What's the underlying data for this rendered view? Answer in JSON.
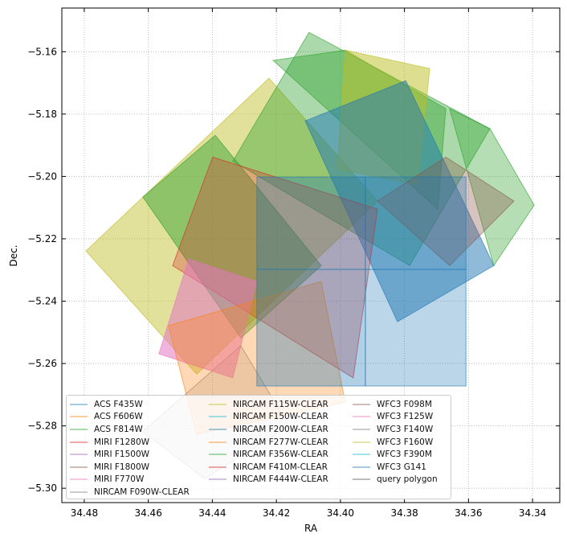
{
  "chart_data": {
    "type": "polygon",
    "title": "",
    "xlabel": "RA",
    "ylabel": "Dec.",
    "xlim": [
      34.487,
      34.3315
    ],
    "ylim": [
      -5.3046,
      -5.146
    ],
    "xticks": [
      34.48,
      34.46,
      34.44,
      34.42,
      34.4,
      34.38,
      34.36,
      34.34
    ],
    "xtick_labels": [
      "34.48",
      "34.46",
      "34.44",
      "34.42",
      "34.40",
      "34.38",
      "34.36",
      "34.34"
    ],
    "yticks": [
      -5.16,
      -5.18,
      -5.2,
      -5.22,
      -5.24,
      -5.26,
      -5.28,
      -5.3
    ],
    "ytick_labels": [
      "−5.16",
      "−5.18",
      "−5.20",
      "−5.22",
      "−5.24",
      "−5.26",
      "−5.28",
      "−5.30"
    ],
    "grid": true,
    "legend_placement": "lower-left",
    "legend": [
      {
        "label": "ACS F435W",
        "color": "#1f77b4"
      },
      {
        "label": "ACS F606W",
        "color": "#ff7f0e"
      },
      {
        "label": "ACS F814W",
        "color": "#2ca02c"
      },
      {
        "label": "MIRI F1280W",
        "color": "#d62728"
      },
      {
        "label": "MIRI F1500W",
        "color": "#9467bd"
      },
      {
        "label": "MIRI F1800W",
        "color": "#8c564b"
      },
      {
        "label": "MIRI F770W",
        "color": "#e377c2"
      },
      {
        "label": "NIRCAM F090W-CLEAR",
        "color": "#7f7f7f"
      },
      {
        "label": "NIRCAM F115W-CLEAR",
        "color": "#bcbd22"
      },
      {
        "label": "NIRCAM F150W-CLEAR",
        "color": "#17becf"
      },
      {
        "label": "NIRCAM F200W-CLEAR",
        "color": "#1f77b4"
      },
      {
        "label": "NIRCAM F277W-CLEAR",
        "color": "#ff7f0e"
      },
      {
        "label": "NIRCAM F356W-CLEAR",
        "color": "#2ca02c"
      },
      {
        "label": "NIRCAM F410M-CLEAR",
        "color": "#d62728"
      },
      {
        "label": "NIRCAM F444W-CLEAR",
        "color": "#9467bd"
      },
      {
        "label": "WFC3 F098M",
        "color": "#8c564b"
      },
      {
        "label": "WFC3 F125W",
        "color": "#e377c2"
      },
      {
        "label": "WFC3 F140W",
        "color": "#7f7f7f"
      },
      {
        "label": "WFC3 F160W",
        "color": "#bcbd22"
      },
      {
        "label": "WFC3 F390M",
        "color": "#17becf"
      },
      {
        "label": "WFC3 G141",
        "color": "#1f77b4"
      },
      {
        "label": "query polygon",
        "color": "#555555"
      }
    ],
    "polygons": [
      {
        "color": "#bcbd22",
        "alpha": 0.45,
        "points": [
          [
            34.4795,
            -5.2239
          ],
          [
            34.4223,
            -5.1685
          ],
          [
            34.3884,
            -5.2079
          ],
          [
            34.4449,
            -5.2634
          ]
        ]
      },
      {
        "color": "#7f7f7f",
        "alpha": 0.2,
        "points": [
          [
            34.4617,
            -5.2818
          ],
          [
            34.4311,
            -5.2543
          ],
          [
            34.416,
            -5.2801
          ],
          [
            34.4424,
            -5.2969
          ]
        ]
      },
      {
        "color": "#2ca02c",
        "alpha": 0.45,
        "points": [
          [
            34.4617,
            -5.2066
          ],
          [
            34.4391,
            -5.1868
          ],
          [
            34.406,
            -5.2286
          ],
          [
            34.4311,
            -5.2518
          ]
        ]
      },
      {
        "color": "#2ca02c",
        "alpha": 0.4,
        "points": [
          [
            34.4336,
            -5.1951
          ],
          [
            34.4098,
            -5.1538
          ],
          [
            34.3533,
            -5.1847
          ],
          [
            34.3784,
            -5.2286
          ]
        ]
      },
      {
        "color": "#2ca02c",
        "alpha": 0.4,
        "points": [
          [
            34.421,
            -5.1628
          ],
          [
            34.3985,
            -5.1595
          ],
          [
            34.3671,
            -5.1783
          ],
          [
            34.3696,
            -5.2105
          ]
        ]
      },
      {
        "color": "#bcbd22",
        "alpha": 0.5,
        "points": [
          [
            34.3985,
            -5.1595
          ],
          [
            34.3721,
            -5.1654
          ],
          [
            34.3759,
            -5.2028
          ],
          [
            34.401,
            -5.1976
          ]
        ]
      },
      {
        "color": "#2ca02c",
        "alpha": 0.35,
        "points": [
          [
            34.3659,
            -5.1783
          ],
          [
            34.3533,
            -5.1847
          ],
          [
            34.3395,
            -5.2092
          ],
          [
            34.3521,
            -5.2286
          ]
        ]
      },
      {
        "color": "#1f77b4",
        "alpha": 0.5,
        "points": [
          [
            34.411,
            -5.1822
          ],
          [
            34.3796,
            -5.1693
          ],
          [
            34.3521,
            -5.2286
          ],
          [
            34.3822,
            -5.2466
          ]
        ]
      },
      {
        "color": "#8c564b",
        "alpha": 0.35,
        "points": [
          [
            34.3884,
            -5.2079
          ],
          [
            34.3671,
            -5.1938
          ],
          [
            34.3458,
            -5.2079
          ],
          [
            34.3659,
            -5.2286
          ]
        ]
      },
      {
        "color": "#d62728",
        "alpha": 0.3,
        "points": [
          [
            34.4524,
            -5.2286
          ],
          [
            34.4399,
            -5.1938
          ],
          [
            34.3884,
            -5.2105
          ],
          [
            34.396,
            -5.2646
          ]
        ]
      },
      {
        "color": "#e377c2",
        "alpha": 0.55,
        "points": [
          [
            34.4567,
            -5.2569
          ],
          [
            34.4474,
            -5.2265
          ],
          [
            34.4261,
            -5.2337
          ],
          [
            34.4336,
            -5.2646
          ]
        ]
      },
      {
        "color": "#ff7f0e",
        "alpha": 0.3,
        "points": [
          [
            34.4537,
            -5.2479
          ],
          [
            34.406,
            -5.2337
          ],
          [
            34.3985,
            -5.2724
          ],
          [
            34.4449,
            -5.2827
          ]
        ]
      },
      {
        "color": "#1f77b4",
        "alpha": 0.35,
        "points": [
          [
            34.4261,
            -5.2002
          ],
          [
            34.3922,
            -5.2002
          ],
          [
            34.3922,
            -5.2298
          ],
          [
            34.4261,
            -5.2298
          ]
        ]
      },
      {
        "color": "#1f77b4",
        "alpha": 0.3,
        "points": [
          [
            34.3922,
            -5.2002
          ],
          [
            34.3608,
            -5.2002
          ],
          [
            34.3608,
            -5.2298
          ],
          [
            34.3922,
            -5.2298
          ]
        ]
      },
      {
        "color": "#1f77b4",
        "alpha": 0.35,
        "points": [
          [
            34.4261,
            -5.2298
          ],
          [
            34.3922,
            -5.2298
          ],
          [
            34.3922,
            -5.2672
          ],
          [
            34.4261,
            -5.2672
          ]
        ]
      },
      {
        "color": "#1f77b4",
        "alpha": 0.3,
        "points": [
          [
            34.3922,
            -5.2298
          ],
          [
            34.3608,
            -5.2298
          ],
          [
            34.3608,
            -5.2672
          ],
          [
            34.3922,
            -5.2672
          ]
        ]
      }
    ]
  }
}
